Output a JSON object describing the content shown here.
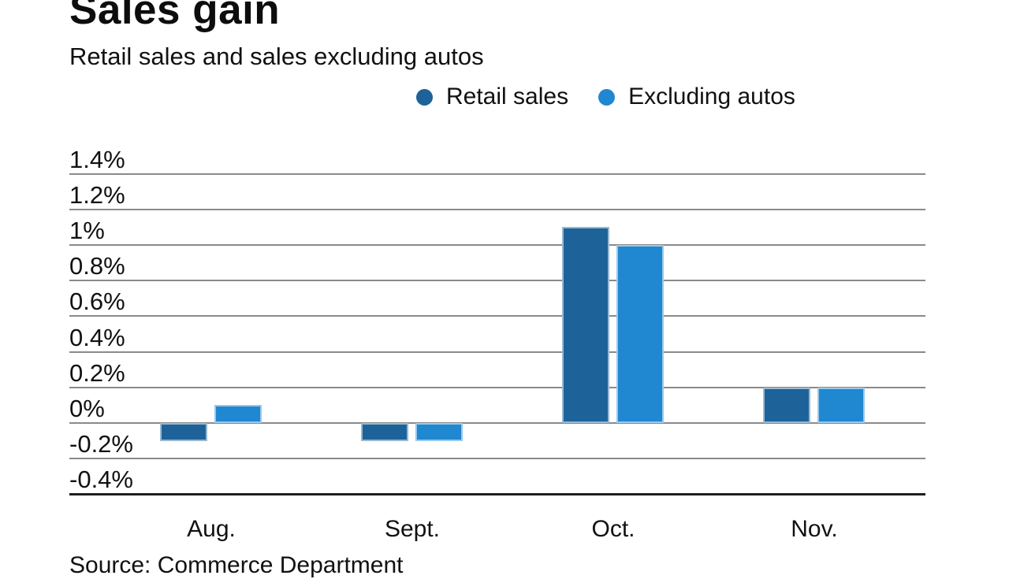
{
  "header": {
    "title": "Sales gain",
    "subtitle": "Retail sales and sales excluding autos"
  },
  "footer": {
    "source": "Source: Commerce Department"
  },
  "colors": {
    "retail_sales": "#1d6399",
    "excluding_autos": "#2087d1",
    "gridline": "#8a8a8a",
    "axis_bottom": "#1f1f1f"
  },
  "chart_data": {
    "type": "bar",
    "title": "Sales gain",
    "subtitle": "Retail sales and sales excluding autos",
    "categories": [
      "Aug.",
      "Sept.",
      "Oct.",
      "Nov."
    ],
    "series": [
      {
        "name": "Retail sales",
        "color": "#1d6399",
        "values": [
          -0.1,
          -0.1,
          1.1,
          0.2
        ]
      },
      {
        "name": "Excluding autos",
        "color": "#2087d1",
        "values": [
          0.1,
          -0.1,
          1.0,
          0.2
        ]
      }
    ],
    "unit": "%",
    "y_ticks": [
      {
        "value": 1.4,
        "label": "1.4%"
      },
      {
        "value": 1.2,
        "label": "1.2%"
      },
      {
        "value": 1.0,
        "label": "1%"
      },
      {
        "value": 0.8,
        "label": "0.8%"
      },
      {
        "value": 0.6,
        "label": "0.6%"
      },
      {
        "value": 0.4,
        "label": "0.4%"
      },
      {
        "value": 0.2,
        "label": "0.2%"
      },
      {
        "value": 0.0,
        "label": "0%"
      },
      {
        "value": -0.2,
        "label": "-0.2%"
      },
      {
        "value": -0.4,
        "label": "-0.4%"
      }
    ],
    "ylim": [
      -0.4,
      1.4
    ],
    "grid": true,
    "legend_position": "top",
    "source": "Source: Commerce Department"
  }
}
